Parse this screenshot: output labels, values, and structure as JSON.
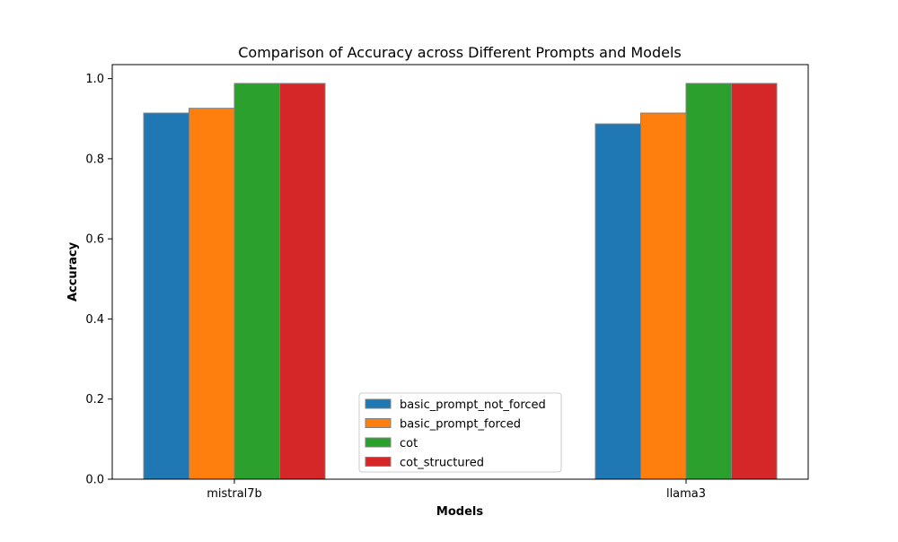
{
  "chart_data": {
    "type": "bar",
    "title": "Comparison of Accuracy across Different Prompts and Models",
    "xlabel": "Models",
    "ylabel": "Accuracy",
    "categories": [
      "mistral7b",
      "llama3"
    ],
    "series": [
      {
        "name": "basic_prompt_not_forced",
        "color": "#1f77b4",
        "values": [
          0.914,
          0.887
        ]
      },
      {
        "name": "basic_prompt_forced",
        "color": "#ff7f0e",
        "values": [
          0.926,
          0.914
        ]
      },
      {
        "name": "cot",
        "color": "#2ca02c",
        "values": [
          0.988,
          0.988
        ]
      },
      {
        "name": "cot_structured",
        "color": "#d62728",
        "values": [
          0.988,
          0.988
        ]
      }
    ],
    "ylim": [
      0,
      1.035
    ],
    "yticks": [
      0.0,
      0.2,
      0.4,
      0.6,
      0.8,
      1.0
    ],
    "ytick_labels": [
      "0.0",
      "0.2",
      "0.4",
      "0.6",
      "0.8",
      "1.0"
    ],
    "grid": false,
    "legend_position": "lower center",
    "bar_edge_color": "#808080"
  }
}
